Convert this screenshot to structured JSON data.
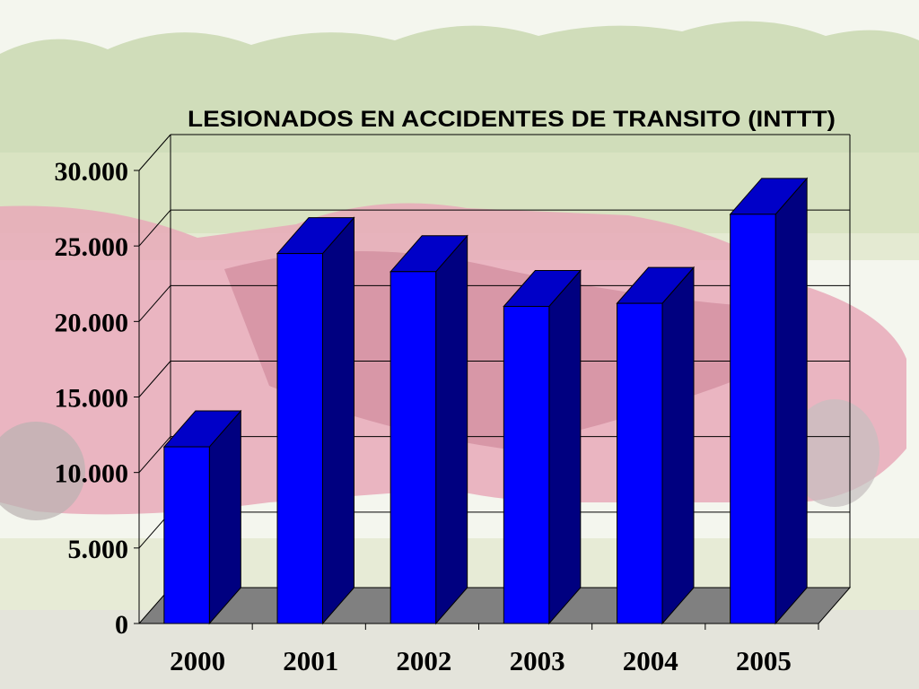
{
  "colors": {
    "sky": "#f4f6ee",
    "foliage": "#c9d8b0",
    "grass": "#dde5c6",
    "car": "#e8a9b8",
    "car_dark": "#c97d92",
    "gravel": "#e4e2dc",
    "bar_front": "#0000ff",
    "bar_side": "#000080",
    "bar_top": "#0000c8",
    "floor": "#808080",
    "grid": "#000000",
    "title": "#000000",
    "ticks": "#000000"
  },
  "chart_data": {
    "type": "bar",
    "style": "3d",
    "title": "LESIONADOS EN ACCIDENTES DE TRANSITO (INTTT)",
    "categories": [
      "2000",
      "2001",
      "2002",
      "2003",
      "2004",
      "2005"
    ],
    "values": [
      11700,
      24500,
      23300,
      21000,
      21200,
      27100
    ],
    "ylim": [
      0,
      30000
    ],
    "yticks": [
      "0",
      "5.000",
      "10.000",
      "15.000",
      "20.000",
      "25.000",
      "30.000"
    ],
    "grid": true,
    "legend": "none"
  }
}
